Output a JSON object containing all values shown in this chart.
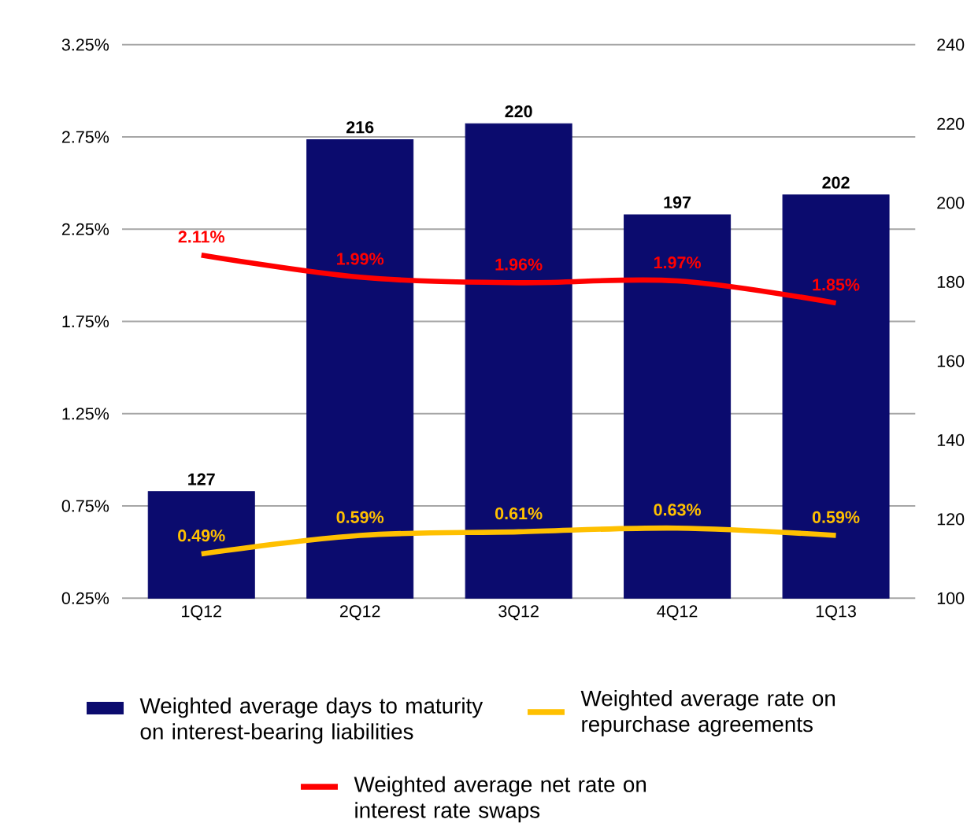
{
  "chart_data": {
    "type": "bar",
    "categories": [
      "1Q12",
      "2Q12",
      "3Q12",
      "4Q12",
      "1Q13"
    ],
    "series": [
      {
        "name": "Weighted average days to maturity on interest-bearing liabilities",
        "axis": "y2",
        "color": "#0b0b6e",
        "values": [
          127,
          216,
          220,
          197,
          202
        ],
        "value_labels": [
          "127",
          "216",
          "220",
          "197",
          "202"
        ]
      },
      {
        "name": "Weighted average rate on repurchase agreements",
        "type": "line",
        "color": "#ffc000",
        "values": [
          0.49,
          0.59,
          0.61,
          0.63,
          0.59
        ],
        "value_labels": [
          "0.49%",
          "0.59%",
          "0.61%",
          "0.63%",
          "0.59%"
        ]
      },
      {
        "name": "Weighted average net rate on interest rate swaps",
        "type": "line",
        "color": "#ff0000",
        "values": [
          2.11,
          1.99,
          1.96,
          1.97,
          1.85
        ],
        "value_labels": [
          "2.11%",
          "1.99%",
          "1.96%",
          "1.97%",
          "1.85%"
        ]
      }
    ],
    "ylim": [
      0.25,
      3.25
    ],
    "yticks": [
      {
        "value": 0.25,
        "label": "0.25%"
      },
      {
        "value": 0.75,
        "label": "0.75%"
      },
      {
        "value": 1.25,
        "label": "1.25%"
      },
      {
        "value": 1.75,
        "label": "1.75%"
      },
      {
        "value": 2.25,
        "label": "2.25%"
      },
      {
        "value": 2.75,
        "label": "2.75%"
      },
      {
        "value": 3.25,
        "label": "3.25%"
      }
    ],
    "y2lim": [
      100,
      240
    ],
    "y2ticks": [
      100,
      120,
      140,
      160,
      180,
      200,
      220,
      240
    ],
    "grid": "y",
    "legend": "bottom"
  }
}
